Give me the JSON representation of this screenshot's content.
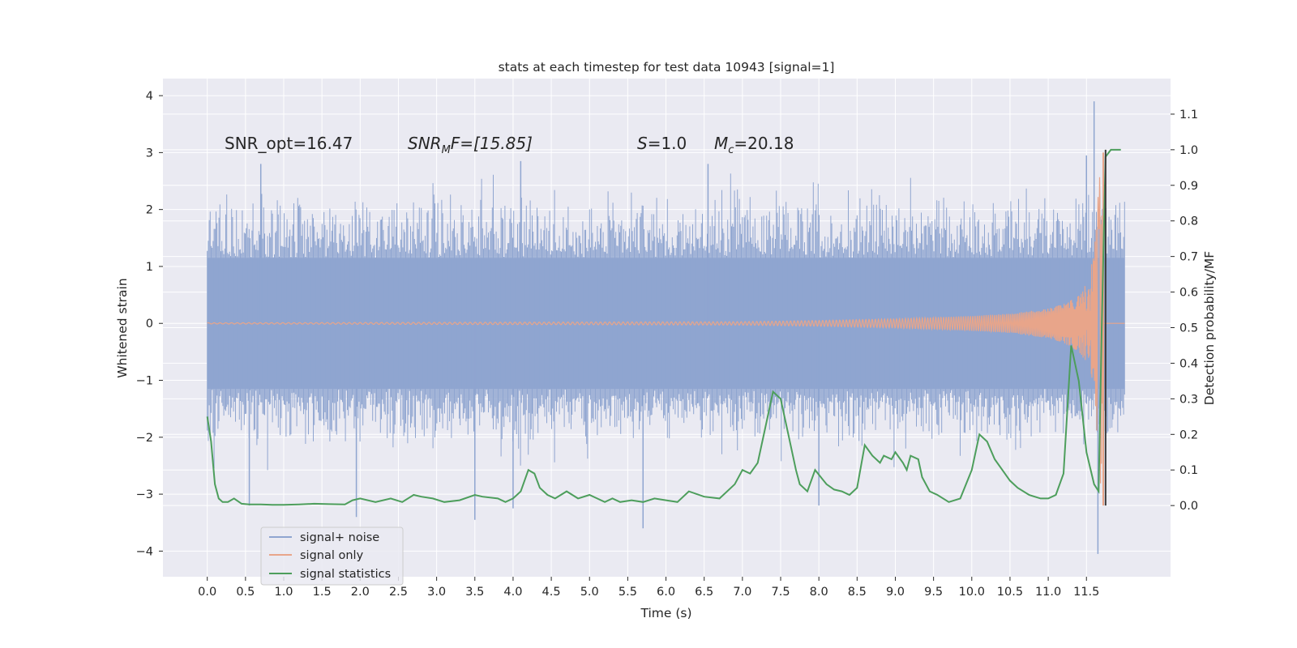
{
  "chart_data": {
    "type": "line",
    "title": "stats at each timestep for test data 10943 [signal=1]",
    "xlabel": "Time (s)",
    "ylabel": "Whitened strain",
    "ylabel_right": "Detection probability/MF",
    "xlim": [
      -0.58,
      12.6
    ],
    "ylim": [
      -4.45,
      4.3
    ],
    "ylim_right": [
      -0.2,
      1.2
    ],
    "grid": true,
    "x_ticks": [
      "0.0",
      "0.5",
      "1.0",
      "1.5",
      "2.0",
      "2.5",
      "3.0",
      "3.5",
      "4.0",
      "4.5",
      "5.0",
      "5.5",
      "6.0",
      "6.5",
      "7.0",
      "7.5",
      "8.0",
      "8.5",
      "9.0",
      "9.5",
      "10.0",
      "10.5",
      "11.0",
      "11.5"
    ],
    "y_ticks": [
      "4",
      "3",
      "2",
      "1",
      "0",
      "−1",
      "−2",
      "−3",
      "−4"
    ],
    "y_ticks_right": [
      "1.1",
      "1.0",
      "0.9",
      "0.8",
      "0.7",
      "0.6",
      "0.5",
      "0.4",
      "0.3",
      "0.2",
      "0.1",
      "0.0"
    ],
    "annotations": {
      "snr_opt": "SNR_opt=16.47",
      "snr_mf_base": "SNR",
      "snr_mf_sub": "M",
      "snr_mf_rest": "F=[15.85]",
      "s_sym": "S",
      "s_val": "=1.0",
      "mc_sym": "M",
      "mc_sub": "c",
      "mc_val": "=20.18"
    },
    "legend": {
      "position": "lower-left",
      "entries": [
        "signal+ noise",
        "signal only",
        "signal statistics"
      ]
    },
    "colors": {
      "noise": "#8fa5d0",
      "signal": "#e8a58a",
      "stats": "#4d9e5c",
      "marker": "#3a3a3a",
      "background": "#eaeaf2",
      "grid": "#ffffff"
    },
    "noise_envelope": {
      "x": [
        0.0,
        12.0
      ],
      "core_abs": 1.15,
      "typical_peak_abs": 2.1,
      "extreme_points": [
        [
          0.55,
          -3.2
        ],
        [
          1.95,
          -3.4
        ],
        [
          3.5,
          -3.45
        ],
        [
          4.0,
          -3.25
        ],
        [
          5.7,
          -3.6
        ],
        [
          8.0,
          -3.2
        ],
        [
          11.6,
          3.9
        ],
        [
          11.65,
          -4.05
        ],
        [
          0.7,
          2.8
        ],
        [
          4.1,
          2.85
        ],
        [
          6.55,
          2.8
        ],
        [
          11.5,
          2.95
        ]
      ]
    },
    "signal_only": {
      "x": [
        0.0,
        7.0,
        8.0,
        9.0,
        10.0,
        10.5,
        11.0,
        11.2,
        11.4,
        11.5,
        11.6,
        11.65,
        11.7,
        11.72
      ],
      "amplitude": [
        0.01,
        0.03,
        0.05,
        0.08,
        0.13,
        0.17,
        0.26,
        0.34,
        0.5,
        0.7,
        1.2,
        2.2,
        3.1,
        0.0
      ]
    },
    "series": [
      {
        "name": "signal statistics",
        "axis": "right",
        "x": [
          0.0,
          0.05,
          0.1,
          0.15,
          0.2,
          0.27,
          0.35,
          0.45,
          0.55,
          0.7,
          0.85,
          1.0,
          1.2,
          1.4,
          1.6,
          1.8,
          1.9,
          2.0,
          2.2,
          2.4,
          2.55,
          2.7,
          2.8,
          2.95,
          3.1,
          3.3,
          3.5,
          3.6,
          3.8,
          3.9,
          4.0,
          4.1,
          4.2,
          4.28,
          4.35,
          4.45,
          4.55,
          4.7,
          4.85,
          5.0,
          5.1,
          5.2,
          5.3,
          5.4,
          5.55,
          5.7,
          5.85,
          6.0,
          6.15,
          6.3,
          6.5,
          6.7,
          6.9,
          7.0,
          7.1,
          7.2,
          7.3,
          7.4,
          7.5,
          7.6,
          7.7,
          7.75,
          7.85,
          7.95,
          8.1,
          8.2,
          8.3,
          8.4,
          8.5,
          8.6,
          8.7,
          8.8,
          8.85,
          8.95,
          9.0,
          9.1,
          9.15,
          9.2,
          9.3,
          9.35,
          9.45,
          9.55,
          9.7,
          9.85,
          10.0,
          10.1,
          10.2,
          10.3,
          10.4,
          10.5,
          10.6,
          10.75,
          10.9,
          11.0,
          11.1,
          11.2,
          11.3,
          11.4,
          11.5,
          11.6,
          11.66,
          11.7,
          11.75,
          11.82,
          11.88,
          11.95
        ],
        "values": [
          0.25,
          0.18,
          0.06,
          0.02,
          0.01,
          0.01,
          0.02,
          0.005,
          0.003,
          0.003,
          0.002,
          0.002,
          0.003,
          0.005,
          0.004,
          0.003,
          0.015,
          0.02,
          0.01,
          0.02,
          0.01,
          0.03,
          0.025,
          0.02,
          0.01,
          0.015,
          0.03,
          0.025,
          0.02,
          0.01,
          0.02,
          0.04,
          0.1,
          0.09,
          0.05,
          0.03,
          0.02,
          0.04,
          0.02,
          0.03,
          0.02,
          0.01,
          0.02,
          0.01,
          0.015,
          0.01,
          0.02,
          0.015,
          0.01,
          0.04,
          0.025,
          0.02,
          0.06,
          0.1,
          0.09,
          0.12,
          0.22,
          0.32,
          0.3,
          0.2,
          0.1,
          0.06,
          0.04,
          0.1,
          0.06,
          0.045,
          0.04,
          0.03,
          0.05,
          0.17,
          0.14,
          0.12,
          0.14,
          0.13,
          0.15,
          0.12,
          0.1,
          0.14,
          0.13,
          0.08,
          0.04,
          0.03,
          0.01,
          0.02,
          0.1,
          0.2,
          0.18,
          0.13,
          0.1,
          0.07,
          0.05,
          0.03,
          0.02,
          0.02,
          0.03,
          0.09,
          0.45,
          0.35,
          0.15,
          0.06,
          0.04,
          0.5,
          0.98,
          1.0,
          1.0,
          1.0
        ]
      }
    ],
    "detection_marker_x": 11.75
  }
}
